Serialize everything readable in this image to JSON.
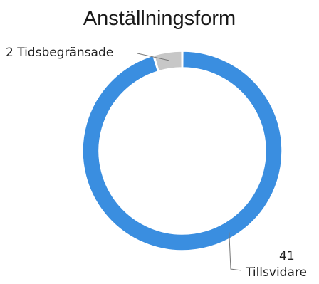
{
  "chart_data": {
    "type": "pie",
    "variant": "donut",
    "title": "Anställningsform",
    "slices": [
      {
        "label": "Tillsvidare",
        "value": 41,
        "color": "#3a8ee0"
      },
      {
        "label": "Tidsbegränsade",
        "value": 2,
        "color": "#c7c7c7"
      }
    ],
    "data_labels": {
      "small": "2 Tidsbegränsade",
      "large_value": "41",
      "large_name": "Tillsvidare"
    }
  }
}
